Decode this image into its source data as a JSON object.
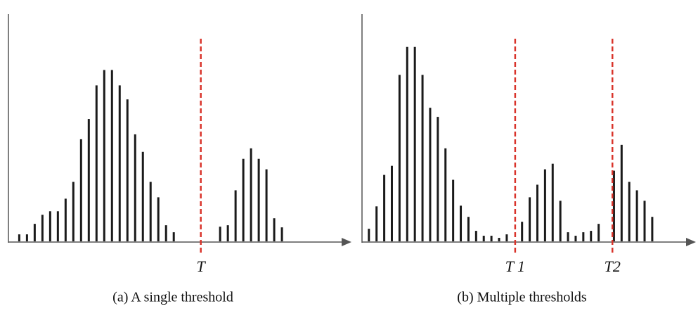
{
  "chart_data": [
    {
      "type": "bar",
      "caption": "(a) A single threshold",
      "color": "#1a1a1a",
      "x": [
        0,
        1,
        2,
        3,
        4,
        5,
        6,
        7,
        8,
        9,
        10,
        11,
        12,
        13,
        14,
        15,
        16,
        17,
        18,
        19,
        20,
        26,
        27,
        28,
        29,
        30,
        31,
        32,
        33,
        34
      ],
      "values": [
        10,
        10,
        25,
        38,
        43,
        43,
        61,
        85,
        146,
        175,
        223,
        245,
        245,
        223,
        203,
        153,
        128,
        85,
        63,
        23,
        13,
        21,
        23,
        73,
        118,
        133,
        118,
        103,
        33,
        20
      ],
      "xlim": [
        -1.4,
        43
      ],
      "ylim": [
        0,
        325
      ],
      "thresholds": [
        {
          "label": "T",
          "x": 23.5,
          "color": "#d9342b"
        }
      ]
    },
    {
      "type": "bar",
      "caption": "(b) Multiple thresholds",
      "color": "#1a1a1a",
      "x": [
        0,
        1,
        2,
        3,
        4,
        5,
        6,
        7,
        8,
        9,
        10,
        11,
        12,
        13,
        14,
        15,
        16,
        17,
        18,
        20,
        21,
        22,
        23,
        24,
        25,
        26,
        27,
        28,
        29,
        30,
        32,
        33,
        34,
        35,
        36,
        37
      ],
      "values": [
        18,
        50,
        95,
        108,
        238,
        278,
        278,
        238,
        191,
        178,
        133,
        88,
        51,
        35,
        15,
        8,
        8,
        5,
        10,
        28,
        63,
        81,
        103,
        111,
        58,
        13,
        8,
        13,
        15,
        25,
        101,
        138,
        85,
        73,
        58,
        35
      ],
      "xlim": [
        -0.9,
        42.7
      ],
      "ylim": [
        0,
        325
      ],
      "thresholds": [
        {
          "label": "T 1",
          "x": 19.1,
          "color": "#d9342b"
        },
        {
          "label": "T2",
          "x": 31.8,
          "color": "#d9342b"
        }
      ]
    }
  ]
}
